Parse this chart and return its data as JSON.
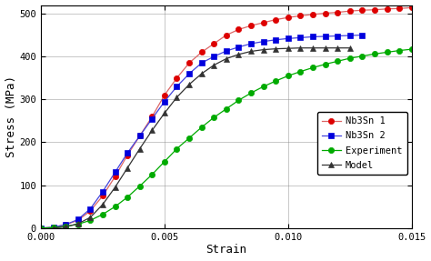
{
  "title": "",
  "xlabel": "Strain",
  "ylabel": "Stress (MPa)",
  "xlim": [
    0.0,
    0.015
  ],
  "ylim": [
    0,
    520
  ],
  "yticks": [
    0,
    100,
    200,
    300,
    400,
    500
  ],
  "xticks": [
    0.0,
    0.005,
    0.01,
    0.015
  ],
  "series": {
    "Nb3Sn 1": {
      "color": "#dd0000",
      "marker": "o",
      "markersize": 4.5,
      "linecolor": "#dd6666",
      "x": [
        0.0,
        0.0005,
        0.001,
        0.0015,
        0.002,
        0.0025,
        0.003,
        0.0035,
        0.004,
        0.0045,
        0.005,
        0.0055,
        0.006,
        0.0065,
        0.007,
        0.0075,
        0.008,
        0.0085,
        0.009,
        0.0095,
        0.01,
        0.0105,
        0.011,
        0.0115,
        0.012,
        0.0125,
        0.013,
        0.0135,
        0.014,
        0.0145,
        0.015
      ],
      "y": [
        0,
        2,
        8,
        18,
        40,
        75,
        120,
        170,
        215,
        260,
        310,
        350,
        385,
        410,
        430,
        450,
        463,
        472,
        479,
        486,
        491,
        495,
        498,
        501,
        503,
        506,
        508,
        509,
        511,
        512,
        514
      ]
    },
    "Nb3Sn 2": {
      "color": "#0000dd",
      "marker": "s",
      "markersize": 4.5,
      "linecolor": "#4444dd",
      "x": [
        0.0,
        0.0005,
        0.001,
        0.0015,
        0.002,
        0.0025,
        0.003,
        0.0035,
        0.004,
        0.0045,
        0.005,
        0.0055,
        0.006,
        0.0065,
        0.007,
        0.0075,
        0.008,
        0.0085,
        0.009,
        0.0095,
        0.01,
        0.0105,
        0.011,
        0.0115,
        0.012,
        0.0125,
        0.013
      ],
      "y": [
        0,
        2,
        8,
        20,
        45,
        85,
        130,
        175,
        215,
        255,
        295,
        330,
        360,
        385,
        400,
        413,
        422,
        430,
        435,
        439,
        442,
        444,
        446,
        447,
        448,
        449,
        450
      ]
    },
    "Experiment": {
      "color": "#00aa00",
      "marker": "o",
      "markersize": 4.5,
      "linecolor": "#00aa00",
      "x": [
        0.0,
        0.0005,
        0.001,
        0.0015,
        0.002,
        0.0025,
        0.003,
        0.0035,
        0.004,
        0.0045,
        0.005,
        0.0055,
        0.006,
        0.0065,
        0.007,
        0.0075,
        0.008,
        0.0085,
        0.009,
        0.0095,
        0.01,
        0.0105,
        0.011,
        0.0115,
        0.012,
        0.0125,
        0.013,
        0.0135,
        0.014,
        0.0145,
        0.015
      ],
      "y": [
        0,
        1,
        4,
        9,
        18,
        32,
        50,
        72,
        98,
        125,
        155,
        185,
        210,
        235,
        258,
        278,
        298,
        315,
        330,
        343,
        355,
        365,
        374,
        382,
        389,
        396,
        401,
        406,
        410,
        414,
        417
      ]
    },
    "Model": {
      "color": "#333333",
      "marker": "^",
      "markersize": 5,
      "linecolor": "#333333",
      "x": [
        0.0005,
        0.001,
        0.0015,
        0.002,
        0.0025,
        0.003,
        0.0035,
        0.004,
        0.0045,
        0.005,
        0.0055,
        0.006,
        0.0065,
        0.007,
        0.0075,
        0.008,
        0.0085,
        0.009,
        0.0095,
        0.01,
        0.0105,
        0.011,
        0.0115,
        0.012,
        0.0125
      ],
      "y": [
        0,
        3,
        10,
        25,
        55,
        95,
        140,
        185,
        228,
        268,
        305,
        335,
        360,
        380,
        395,
        405,
        412,
        416,
        418,
        419,
        420,
        420,
        420,
        420,
        420
      ]
    }
  },
  "legend_order": [
    "Nb3Sn 1",
    "Nb3Sn 2",
    "Experiment",
    "Model"
  ],
  "font_family": "monospace"
}
